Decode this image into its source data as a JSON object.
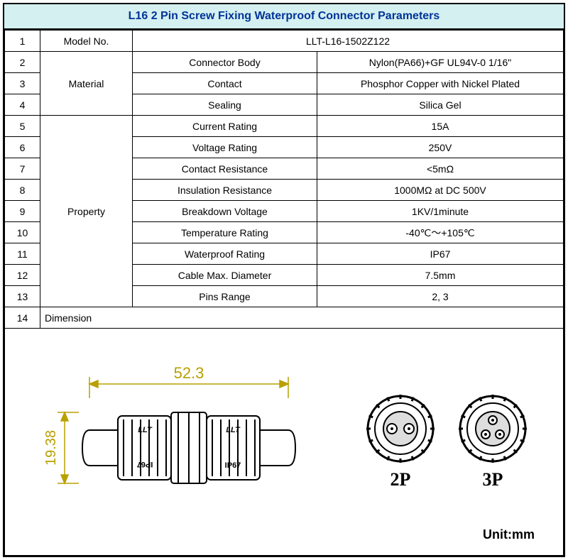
{
  "title": "L16 2 Pin Screw Fixing Waterproof Connector Parameters",
  "colors": {
    "title_bg": "#d4f0f0",
    "title_text": "#003399",
    "dim_text": "#b8a000",
    "border": "#000000"
  },
  "rows": [
    {
      "num": "1",
      "cat": "Model No.",
      "param": null,
      "value": "LLT-L16-1502Z122",
      "cat_rowspan": 1,
      "full_value": true
    },
    {
      "num": "2",
      "cat": "Material",
      "param": "Connector Body",
      "value": "Nylon(PA66)+GF UL94V-0 1/16\"",
      "cat_rowspan": 3
    },
    {
      "num": "3",
      "cat": null,
      "param": "Contact",
      "value": "Phosphor Copper with Nickel Plated"
    },
    {
      "num": "4",
      "cat": null,
      "param": "Sealing",
      "value": "Silica Gel"
    },
    {
      "num": "5",
      "cat": "Property",
      "param": "Current Rating",
      "value": "15A",
      "cat_rowspan": 9
    },
    {
      "num": "6",
      "cat": null,
      "param": "Voltage Rating",
      "value": "250V"
    },
    {
      "num": "7",
      "cat": null,
      "param": "Contact Resistance",
      "value": "<5mΩ"
    },
    {
      "num": "8",
      "cat": null,
      "param": "Insulation Resistance",
      "value": "1000MΩ at DC 500V"
    },
    {
      "num": "9",
      "cat": null,
      "param": "Breakdown Voltage",
      "value": "1KV/1minute"
    },
    {
      "num": "10",
      "cat": null,
      "param": "Temperature Rating",
      "value": "-40℃～+105℃"
    },
    {
      "num": "11",
      "cat": null,
      "param": "Waterproof Rating",
      "value": "IP67"
    },
    {
      "num": "12",
      "cat": null,
      "param": "Cable Max. Diameter",
      "value": "7.5mm"
    },
    {
      "num": "13",
      "cat": null,
      "param": "Pins Range",
      "value": "2, 3"
    }
  ],
  "dimension_row": {
    "num": "14",
    "label": "Dimension"
  },
  "diagram": {
    "length_label": "52.3",
    "height_label": "19.38",
    "end_labels": [
      "2P",
      "3P"
    ],
    "unit": "Unit:mm",
    "body_text": [
      "LLT",
      "IP67"
    ]
  }
}
